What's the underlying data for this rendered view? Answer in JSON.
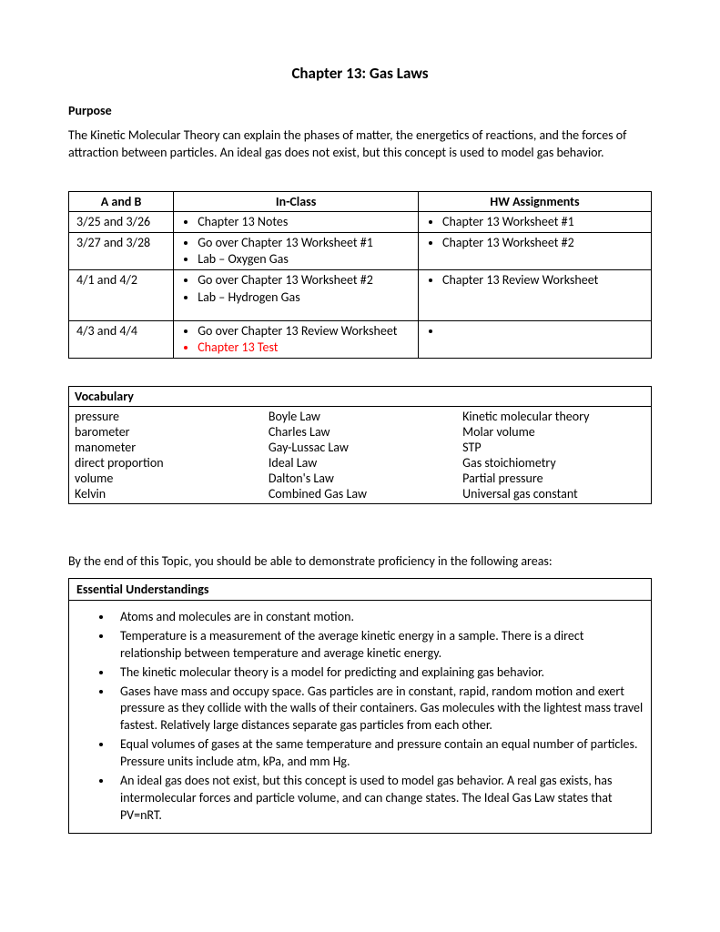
{
  "title": "Chapter 13:  Gas Laws",
  "purpose": {
    "heading": "Purpose",
    "text": "The Kinetic Molecular Theory can explain the phases of matter, the energetics of reactions, and the forces of attraction between particles.  An ideal gas does not exist, but this concept is used to model gas behavior."
  },
  "schedule": {
    "headers": {
      "a": "A and B",
      "b": "In-Class",
      "c": "HW Assignments"
    },
    "rows": [
      {
        "dates": "3/25 and 3/26",
        "inclass": [
          {
            "text": "Chapter 13 Notes",
            "red": false
          }
        ],
        "hw": [
          {
            "text": "Chapter 13 Worksheet #1",
            "red": false
          }
        ]
      },
      {
        "dates": "3/27 and 3/28",
        "inclass": [
          {
            "text": "Go over Chapter 13 Worksheet #1",
            "red": false
          },
          {
            "text": "Lab – Oxygen Gas",
            "red": false
          }
        ],
        "hw": [
          {
            "text": "Chapter 13 Worksheet #2",
            "red": false
          }
        ]
      },
      {
        "dates": "4/1 and 4/2",
        "inclass": [
          {
            "text": "Go over Chapter 13 Worksheet #2",
            "red": false
          },
          {
            "text": "Lab – Hydrogen Gas",
            "red": false
          }
        ],
        "hw": [
          {
            "text": "Chapter 13 Review Worksheet",
            "red": false
          }
        ]
      },
      {
        "dates": "4/3 and 4/4",
        "inclass": [
          {
            "text": "Go over Chapter 13 Review Worksheet",
            "red": false
          },
          {
            "text": "Chapter 13 Test",
            "red": true
          }
        ],
        "hw": [
          {
            "text": "",
            "red": false
          }
        ]
      }
    ]
  },
  "vocabulary": {
    "heading": "Vocabulary",
    "col1": [
      "pressure",
      "barometer",
      "manometer",
      "direct proportion",
      "volume",
      "Kelvin"
    ],
    "col2": [
      "Boyle Law",
      "Charles Law",
      "Gay-Lussac Law",
      "Ideal Law",
      "Dalton's Law",
      "Combined Gas Law"
    ],
    "col3": [
      "Kinetic molecular theory",
      "Molar volume",
      "STP",
      "Gas stoichiometry",
      "Partial pressure",
      "Universal gas constant"
    ]
  },
  "proficiency_intro": "By the end of this Topic, you should be able to demonstrate proficiency in the following areas:",
  "essential": {
    "heading": "Essential Understandings",
    "items": [
      "Atoms and molecules are in constant motion.",
      "Temperature is a measurement of the average kinetic energy in a sample.  There is a direct relationship between temperature and average kinetic energy.",
      "The kinetic molecular theory is a model for predicting and explaining gas behavior.",
      "Gases have mass and occupy space.  Gas particles are in constant, rapid, random motion and exert pressure as they collide with the walls of their containers.  Gas molecules with the lightest mass travel fastest.  Relatively large distances separate gas particles from each other.",
      "Equal volumes of gases at the same temperature and pressure contain an equal number of particles.  Pressure units include atm, kPa, and mm Hg.",
      "An ideal gas does not exist, but this concept is used to model gas behavior.  A real gas exists, has intermolecular forces and particle volume, and can change states.  The Ideal Gas Law states that PV=nRT."
    ]
  }
}
